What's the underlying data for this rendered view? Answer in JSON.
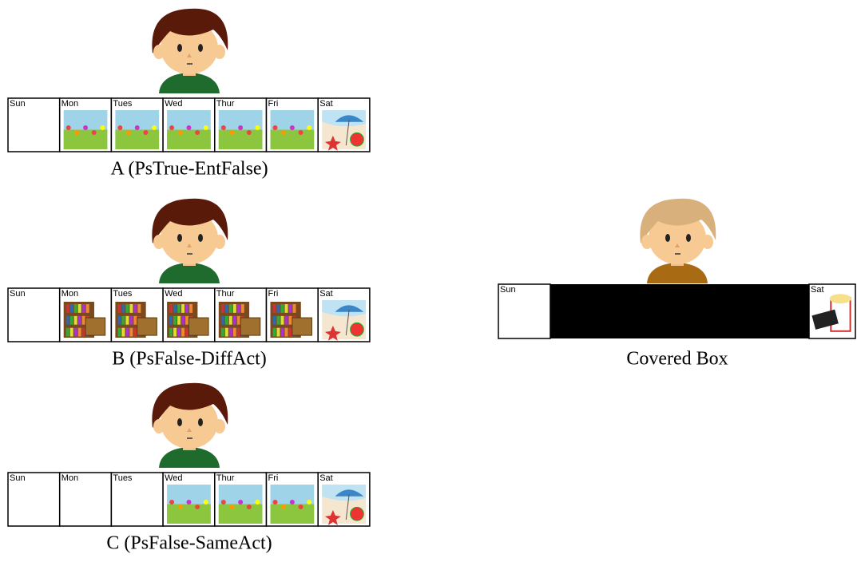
{
  "panels": [
    {
      "caption": "A (PsTrue-EntFalse)",
      "days": [
        "Sun",
        "Mon",
        "Tues",
        "Wed",
        "Thur",
        "Fri",
        "Sat"
      ]
    },
    {
      "caption": "B (PsFalse-DiffAct)",
      "days": [
        "Sun",
        "Mon",
        "Tues",
        "Wed",
        "Thur",
        "Fri",
        "Sat"
      ]
    },
    {
      "caption": "C (PsFalse-SameAct)",
      "days": [
        "Sun",
        "Mon",
        "Tues",
        "Wed",
        "Thur",
        "Fri",
        "Sat"
      ]
    }
  ],
  "covered": {
    "caption": "Covered Box",
    "days": [
      "Sun",
      "Sat"
    ]
  }
}
